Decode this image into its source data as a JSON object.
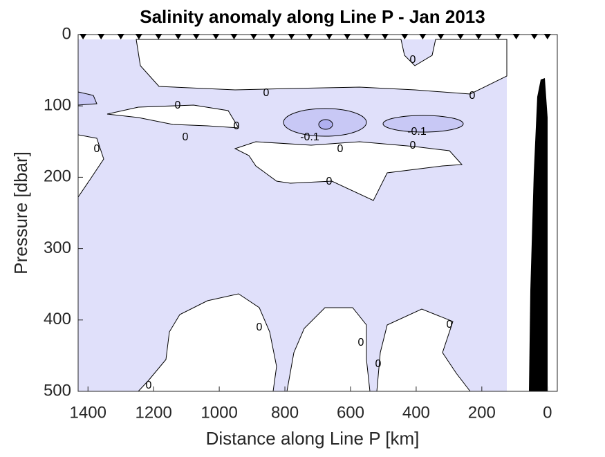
{
  "chart_data": {
    "type": "contour",
    "title": "Salinity anomaly along Line P - Jan 2013",
    "x_label": "Distance along Line P [km]",
    "y_label": "Pressure [dbar]",
    "xlim": [
      1430,
      -30
    ],
    "ylim": [
      0,
      500
    ],
    "xticks": [
      1400,
      1200,
      1000,
      800,
      600,
      400,
      200,
      0
    ],
    "yticks": [
      0,
      100,
      200,
      300,
      400,
      500
    ],
    "stations": [
      1415,
      1360,
      1300,
      1245,
      1185,
      1125,
      1070,
      1010,
      955,
      895,
      840,
      780,
      725,
      665,
      610,
      550,
      495,
      435,
      380,
      325,
      265,
      210,
      150,
      95,
      40,
      0
    ],
    "contour_labels": [
      "0",
      "0",
      "0",
      "0",
      "0",
      "0",
      "0",
      "0",
      "0",
      "0",
      "0",
      "0",
      "0",
      "0",
      "0",
      "-0.1",
      "-0.1"
    ]
  }
}
